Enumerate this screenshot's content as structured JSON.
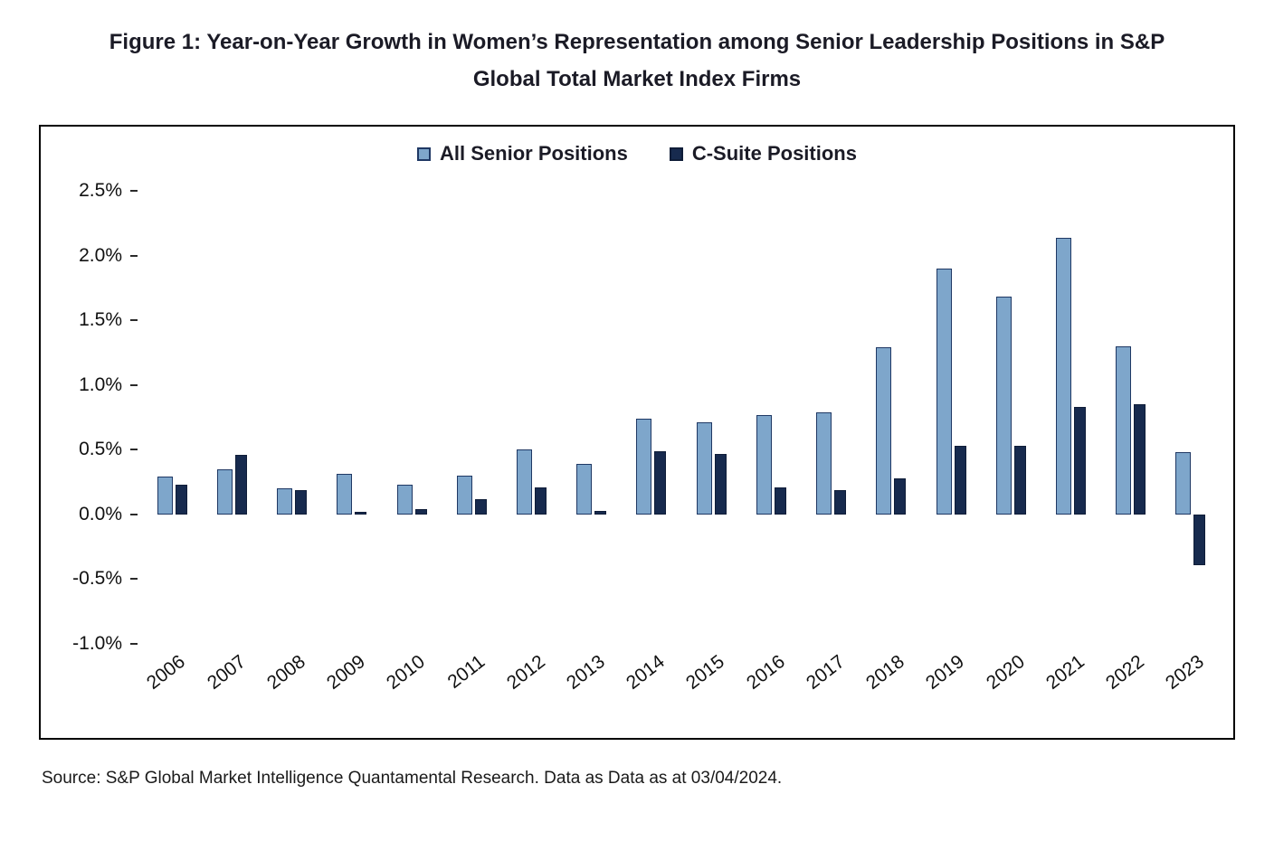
{
  "figure": {
    "title": "Figure 1: Year-on-Year Growth in Women’s Representation among Senior Leadership Positions in S&P Global Total Market Index Firms",
    "title_lines": [
      "Figure 1: Year-on-Year Growth in Women’s Representation among Senior Leadership Positions in S&P",
      "Global Total Market Index Firms"
    ],
    "source": "Source: S&P Global Market Intelligence Quantamental Research. Data as Data as at 03/04/2024."
  },
  "colors": {
    "all_senior_fill": "#7EA6CB",
    "all_senior_border": "#1F3864",
    "c_suite_fill": "#172A4E",
    "c_suite_border": "#0F1D38",
    "chart_border": "#000000",
    "text": "#1B1B26"
  },
  "chart_data": {
    "type": "bar",
    "title": "Figure 1: Year-on-Year Growth in Women’s Representation among Senior Leadership Positions in S&P Global Total Market Index Firms",
    "categories": [
      "2006",
      "2007",
      "2008",
      "2009",
      "2010",
      "2011",
      "2012",
      "2013",
      "2014",
      "2015",
      "2016",
      "2017",
      "2018",
      "2019",
      "2020",
      "2021",
      "2022",
      "2023"
    ],
    "series": [
      {
        "name": "All Senior Positions",
        "key": "all-senior-positions",
        "values": [
          0.29,
          0.35,
          0.2,
          0.31,
          0.23,
          0.3,
          0.5,
          0.39,
          0.74,
          0.71,
          0.77,
          0.79,
          1.29,
          1.9,
          1.68,
          2.14,
          1.3,
          0.48
        ]
      },
      {
        "name": "C-Suite Positions",
        "key": "c-suite-positions",
        "values": [
          0.23,
          0.46,
          0.19,
          0.02,
          0.04,
          0.12,
          0.21,
          0.03,
          0.49,
          0.47,
          0.21,
          0.19,
          0.28,
          0.53,
          0.53,
          0.83,
          0.85,
          -0.39
        ]
      }
    ],
    "xlabel": "",
    "ylabel": "",
    "ylim": [
      -1.0,
      2.5
    ],
    "y_ticks": [
      {
        "value": 2.5,
        "label": "2.5%"
      },
      {
        "value": 2.0,
        "label": "2.0%"
      },
      {
        "value": 1.5,
        "label": "1.5%"
      },
      {
        "value": 1.0,
        "label": "1.0%"
      },
      {
        "value": 0.5,
        "label": "0.5%"
      },
      {
        "value": 0.0,
        "label": "0.0%"
      },
      {
        "value": -0.5,
        "label": "-0.5%"
      },
      {
        "value": -1.0,
        "label": "-1.0%"
      }
    ],
    "value_unit": "%",
    "grid": false,
    "legend_position": "top-center"
  }
}
